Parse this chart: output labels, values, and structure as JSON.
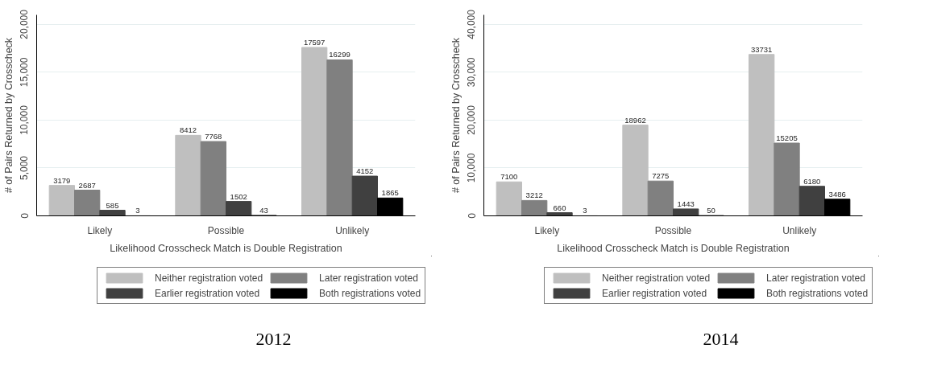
{
  "chart_data": [
    {
      "type": "bar",
      "title": "2012",
      "xlabel": "Likelihood Crosscheck Match is Double Registration",
      "ylabel": "# of Pairs Returned by Crosscheck",
      "categories": [
        "Likely",
        "Possible",
        "Unlikely"
      ],
      "series": [
        {
          "name": "Neither registration voted",
          "color": "#bfbfbf",
          "values": [
            3179,
            8412,
            17597
          ]
        },
        {
          "name": "Later registration voted",
          "color": "#808080",
          "values": [
            2687,
            7768,
            16299
          ]
        },
        {
          "name": "Earlier registration voted",
          "color": "#404040",
          "values": [
            585,
            1502,
            4152
          ]
        },
        {
          "name": "Both registrations voted",
          "color": "#000000",
          "values": [
            3,
            43,
            1865
          ]
        }
      ],
      "ylim": [
        0,
        21000
      ],
      "yticks": [
        0,
        {
          "value": 5000,
          "label": "5,000"
        },
        {
          "value": 10000,
          "label": "10,000"
        },
        {
          "value": 15000,
          "label": "15,000"
        },
        {
          "value": 20000,
          "label": "20,000"
        }
      ],
      "grid": "y",
      "legend": "bottom",
      "data_labels": true
    },
    {
      "type": "bar",
      "title": "2014",
      "xlabel": "Likelihood Crosscheck Match is Double Registration",
      "ylabel": "# of Pairs Returned by Crosscheck",
      "categories": [
        "Likely",
        "Possible",
        "Unlikely"
      ],
      "series": [
        {
          "name": "Neither registration voted",
          "color": "#bfbfbf",
          "values": [
            7100,
            18962,
            33731
          ]
        },
        {
          "name": "Later registration voted",
          "color": "#808080",
          "values": [
            3212,
            7275,
            15205
          ]
        },
        {
          "name": "Earlier registration voted",
          "color": "#404040",
          "values": [
            660,
            1443,
            6180
          ]
        },
        {
          "name": "Both registrations voted",
          "color": "#000000",
          "values": [
            3,
            50,
            3486
          ]
        }
      ],
      "ylim": [
        0,
        42000
      ],
      "yticks": [
        0,
        {
          "value": 10000,
          "label": "10,000"
        },
        {
          "value": 20000,
          "label": "20,000"
        },
        {
          "value": 30000,
          "label": "30,000"
        },
        {
          "value": 40000,
          "label": "40,000"
        }
      ],
      "grid": "y",
      "legend": "bottom",
      "data_labels": true
    }
  ]
}
